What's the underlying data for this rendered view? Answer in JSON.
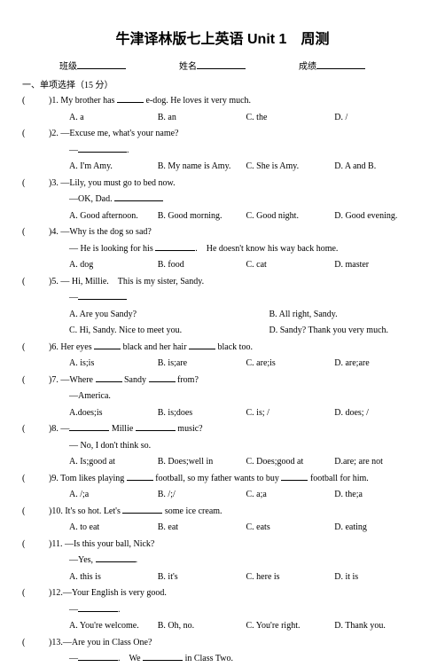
{
  "title": "牛津译林版七上英语 Unit 1　周测",
  "fields": {
    "class": "班级",
    "name": "姓名",
    "score": "成绩"
  },
  "section": "一、单项选择（15 分）",
  "q1": {
    "text": "1. My brother has ",
    "text2": " e-dog. He loves it very much.",
    "a": "A. a",
    "b": "B. an",
    "c": "C. the",
    "d": "D. /"
  },
  "q2": {
    "text": "2. —Excuse me, what's your name?",
    "dash": "—",
    "a": "A. I'm Amy.",
    "b": "B. My name is Amy.",
    "c": "C. She is Amy.",
    "d": "D. A and B."
  },
  "q3": {
    "text": "3. —Lily, you must go to bed now.",
    "reply": "—OK, Dad. ",
    "a": "A. Good afternoon.",
    "b": "B. Good morning.",
    "c": "C. Good night.",
    "d": "D. Good evening."
  },
  "q4": {
    "text": "4. —Why is the dog so sad?",
    "reply1": "— He is looking for his ",
    "reply2": ".　He doesn't know his way back home.",
    "a": "A. dog",
    "b": "B. food",
    "c": "C. cat",
    "d": "D. master"
  },
  "q5": {
    "text": "5. — Hi, Millie.　This is my sister, Sandy.",
    "dash": "—",
    "a": "A. Are you Sandy?",
    "b": "B. All right, Sandy.",
    "c": "C. Hi, Sandy. Nice to meet you.",
    "d": "D. Sandy? Thank you very much."
  },
  "q6": {
    "text1": "6. Her eyes ",
    "text2": " black and her hair ",
    "text3": " black too.",
    "a": "A. is;is",
    "b": "B. is;are",
    "c": "C. are;is",
    "d": "D. are;are"
  },
  "q7": {
    "text1": "7. —Where ",
    "text2": " Sandy ",
    "text3": " from?",
    "reply": "—America.",
    "a": "A.does;is",
    "b": "B. is;does",
    "c": "C. is; /",
    "d": "D. does; /"
  },
  "q8": {
    "text1": "8. —",
    "text2": " Millie ",
    "text3": " music?",
    "reply": "— No, I don't think so.",
    "a": "A. Is;good at",
    "b": "B. Does;well in",
    "c": "C. Does;good at",
    "d": "D.are; are not"
  },
  "q9": {
    "text1": "9. Tom likes playing ",
    "text2": " football, so my father wants to buy ",
    "text3": " football for him.",
    "a": "A. /;a",
    "b": "B. /;/",
    "c": "C. a;a",
    "d": "D. the;a"
  },
  "q10": {
    "text1": "10. It's so hot. Let's ",
    "text2": " some ice cream.",
    "a": "A. to eat",
    "b": "B. eat",
    "c": "C. eats",
    "d": "D. eating"
  },
  "q11": {
    "text": "11. —Is this your ball, Nick?",
    "reply": "—Yes, ",
    "a": "A. this is",
    "b": "B. it's",
    "c": "C. here is",
    "d": "D. it is"
  },
  "q12": {
    "text": "12.—Your English is very good.",
    "dash": "—",
    "a": "A. You're welcome.",
    "b": "B. Oh, no.",
    "c": "C. You're right.",
    "d": "D. Thank you."
  },
  "q13": {
    "text": "13.—Are you in Class One?",
    "reply1": "—",
    "reply2": ".　We ",
    "reply3": " in Class Two."
  }
}
